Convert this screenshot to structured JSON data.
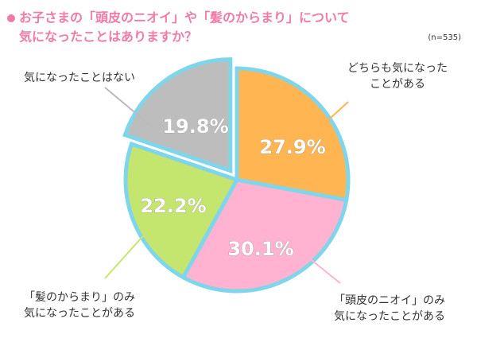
{
  "chart_data": {
    "type": "pie",
    "title": [
      "お子さまの「頭皮のニオイ」や「髪のからまり」について",
      "気になったことはありますか？"
    ],
    "note": "(n=535)",
    "categories": [
      [
        "どちらも気になった",
        "ことがある"
      ],
      [
        "「頭皮のニオイ」のみ",
        "気になったことがある"
      ],
      [
        "「髪のからまり」のみ",
        "気になったことがある"
      ],
      [
        "気になったことはない"
      ]
    ],
    "values": [
      27.9,
      30.1,
      22.2,
      19.8
    ],
    "value_labels": [
      "27.9%",
      "30.1%",
      "22.2%",
      "19.8%"
    ],
    "colors": [
      "#ffb552",
      "#ffb3d1",
      "#c5e66e",
      "#bdbdbd"
    ],
    "explode": [
      false,
      false,
      false,
      true
    ]
  }
}
